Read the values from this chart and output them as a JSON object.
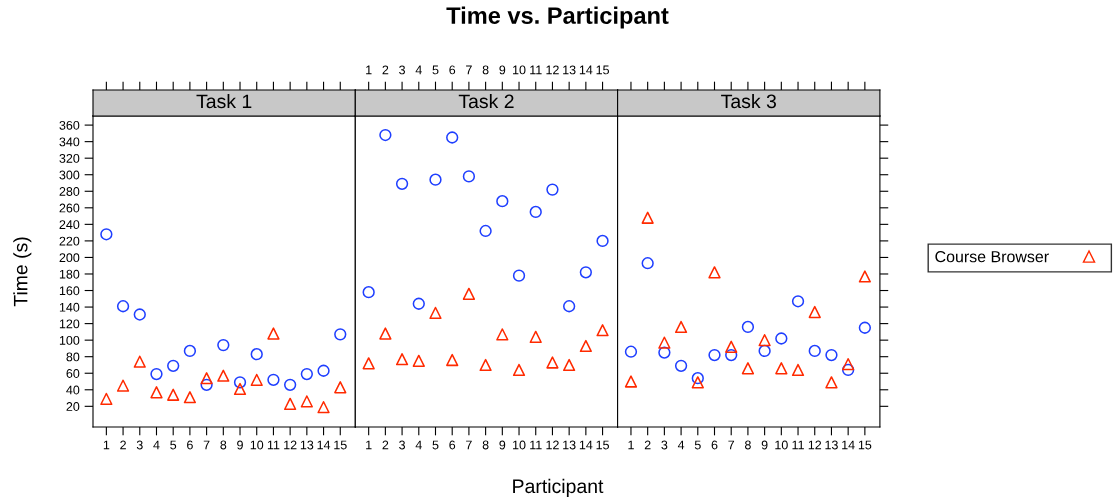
{
  "chart_data": [
    {
      "type": "scatter",
      "subtitle": "Task 1",
      "ylabel": "Time (s)",
      "x": [
        1,
        2,
        3,
        4,
        5,
        6,
        7,
        8,
        9,
        10,
        11,
        12,
        13,
        14,
        15
      ],
      "xlim": [
        0.2,
        15.9
      ],
      "xticks": [
        1,
        2,
        3,
        4,
        5,
        6,
        7,
        8,
        9,
        10,
        11,
        12,
        13,
        14,
        15
      ],
      "ylim": [
        -5,
        371
      ],
      "yticks": [
        20,
        40,
        60,
        80,
        100,
        120,
        140,
        160,
        180,
        200,
        220,
        240,
        260,
        280,
        300,
        320,
        340,
        360
      ],
      "grid": false,
      "series": [
        {
          "color": "#1f3fff",
          "marker": "circle",
          "values": [
            228,
            141,
            131,
            59,
            69,
            87,
            46,
            94,
            49,
            83,
            52,
            46,
            59,
            63,
            107
          ]
        },
        {
          "color": "#ff2a00",
          "marker": "triangle",
          "values": [
            29,
            45,
            74,
            37,
            34,
            31,
            54,
            57,
            41,
            52,
            108,
            23,
            26,
            19,
            43
          ]
        }
      ]
    },
    {
      "type": "scatter",
      "title": "Time vs. Participant",
      "subtitle": "Task 2",
      "xlabel": "Participant",
      "x": [
        1,
        2,
        3,
        4,
        5,
        6,
        7,
        8,
        9,
        10,
        11,
        12,
        13,
        14,
        15
      ],
      "x2lim": [
        0.2,
        15.9
      ],
      "x2ticks": [
        1,
        2,
        3,
        4,
        5,
        6,
        7,
        8,
        9,
        10,
        11,
        12,
        13,
        14,
        15
      ],
      "ylim": [
        -5,
        371
      ],
      "tick_labels": "x",
      "grid": false,
      "series": [
        {
          "color": "#1f3fff",
          "marker": "circle",
          "values": [
            158,
            348,
            289,
            144,
            294,
            345,
            298,
            232,
            268,
            178,
            255,
            282,
            141,
            182,
            220
          ]
        },
        {
          "color": "#ff2a00",
          "marker": "triangle",
          "values": [
            72,
            108,
            77,
            75,
            133,
            76,
            156,
            70,
            107,
            64,
            104,
            73,
            70,
            93,
            112
          ]
        }
      ]
    },
    {
      "type": "scatter",
      "subtitle": "Task 3",
      "x": [
        1,
        2,
        3,
        4,
        5,
        6,
        7,
        8,
        9,
        10,
        11,
        12,
        13,
        14,
        15
      ],
      "xlim": [
        0.2,
        15.9
      ],
      "xticks": [
        1,
        2,
        3,
        4,
        5,
        6,
        7,
        8,
        9,
        10,
        11,
        12,
        13,
        14,
        15
      ],
      "ylim": [
        -5,
        371
      ],
      "tick_labels": "x",
      "grid": false,
      "legend": "right",
      "series": [
        {
          "color": "#1f3fff",
          "marker": "circle",
          "values": [
            86,
            193,
            85,
            69,
            54,
            82,
            82,
            116,
            87,
            102,
            147,
            87,
            82,
            64,
            115
          ]
        },
        {
          "name": "Course Browser",
          "color": "#ff2a00",
          "marker": "triangle",
          "values": [
            50,
            248,
            97,
            116,
            49,
            182,
            92,
            66,
            100,
            66,
            64,
            134,
            49,
            71,
            177
          ]
        }
      ]
    }
  ]
}
